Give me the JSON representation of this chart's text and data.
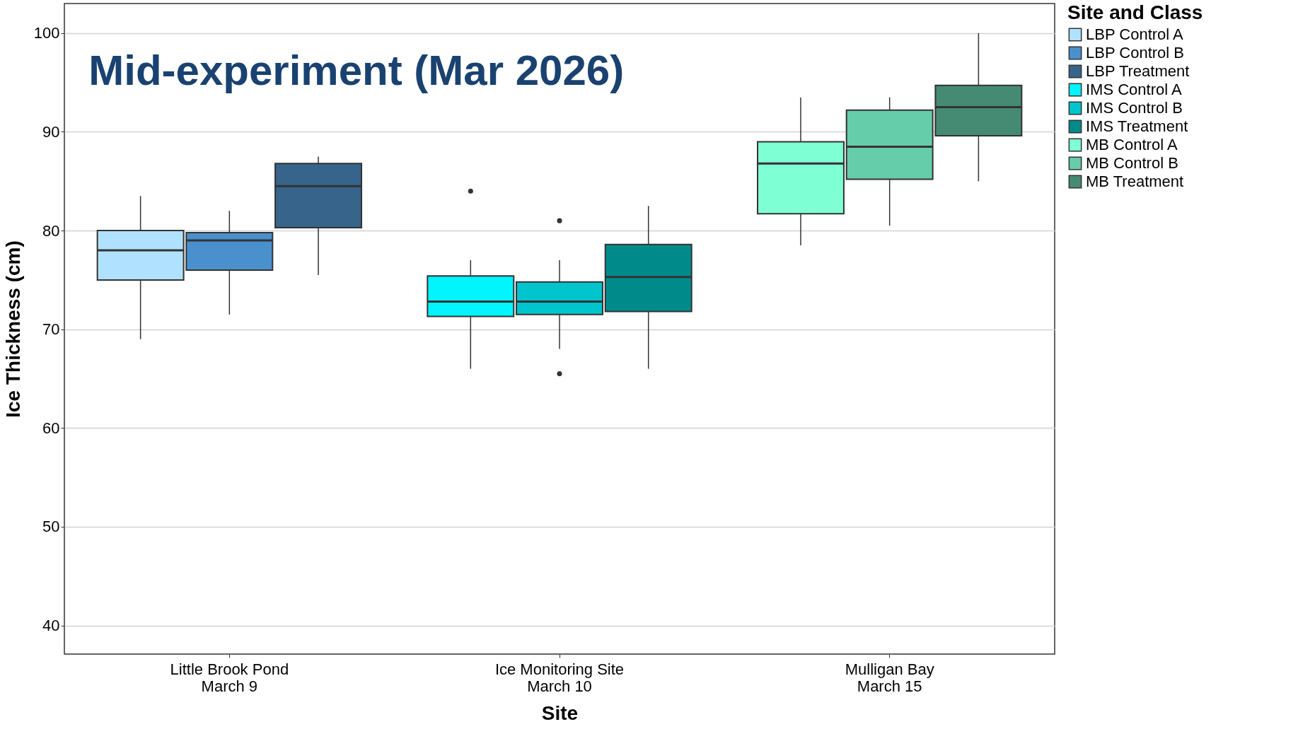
{
  "chart_data": {
    "type": "box",
    "title": "Mid-experiment (Mar 2026)",
    "xlabel": "Site",
    "ylabel": "Ice Thickness (cm)",
    "legend_title": "Site and Class",
    "categories": [
      "Little Brook Pond\nMarch 9",
      "Ice Monitoring Site\nMarch 10",
      "Mulligan Bay\nMarch 15"
    ],
    "series": [
      {
        "name": "LBP Control A",
        "color": "#b0e2ff",
        "boxes": [
          {
            "low": 69,
            "q1": 75,
            "median": 78,
            "q3": 80,
            "high": 83.5
          },
          null,
          null
        ]
      },
      {
        "name": "LBP Control B",
        "color": "#4a90cd",
        "boxes": [
          {
            "low": 71.5,
            "q1": 76,
            "median": 79,
            "q3": 79.8,
            "high": 82
          },
          null,
          null
        ]
      },
      {
        "name": "LBP Treatment",
        "color": "#36648b",
        "boxes": [
          {
            "low": 75.5,
            "q1": 80.3,
            "median": 84.5,
            "q3": 86.8,
            "high": 87.5
          },
          null,
          null
        ]
      },
      {
        "name": "IMS Control A",
        "color": "#00f5ff",
        "boxes": [
          null,
          {
            "low": 66,
            "q1": 71.3,
            "median": 72.8,
            "q3": 75.4,
            "high": 77,
            "outliers": [
              84
            ]
          },
          null
        ]
      },
      {
        "name": "IMS Control B",
        "color": "#00c5cd",
        "boxes": [
          null,
          {
            "low": 68,
            "q1": 71.5,
            "median": 72.8,
            "q3": 74.8,
            "high": 77,
            "outliers": [
              81,
              65.5
            ]
          },
          null
        ]
      },
      {
        "name": "IMS Treatment",
        "color": "#008b8b",
        "boxes": [
          null,
          {
            "low": 66,
            "q1": 71.8,
            "median": 75.3,
            "q3": 78.6,
            "high": 82.5
          },
          null
        ]
      },
      {
        "name": "MB Control A",
        "color": "#7fffd4",
        "boxes": [
          null,
          null,
          {
            "low": 78.5,
            "q1": 81.7,
            "median": 86.8,
            "q3": 89,
            "high": 93.5
          }
        ]
      },
      {
        "name": "MB Control B",
        "color": "#66cdaa",
        "boxes": [
          null,
          null,
          {
            "low": 80.5,
            "q1": 85.2,
            "median": 88.5,
            "q3": 92.2,
            "high": 93.5
          }
        ]
      },
      {
        "name": "MB Treatment",
        "color": "#458b74",
        "boxes": [
          null,
          null,
          {
            "low": 85,
            "q1": 89.6,
            "median": 92.5,
            "q3": 94.7,
            "high": 100
          }
        ]
      }
    ],
    "ylim": [
      37.1,
      103
    ],
    "yticks": [
      40,
      50,
      60,
      70,
      80,
      90,
      100
    ],
    "grid": "y",
    "legend": "right"
  }
}
